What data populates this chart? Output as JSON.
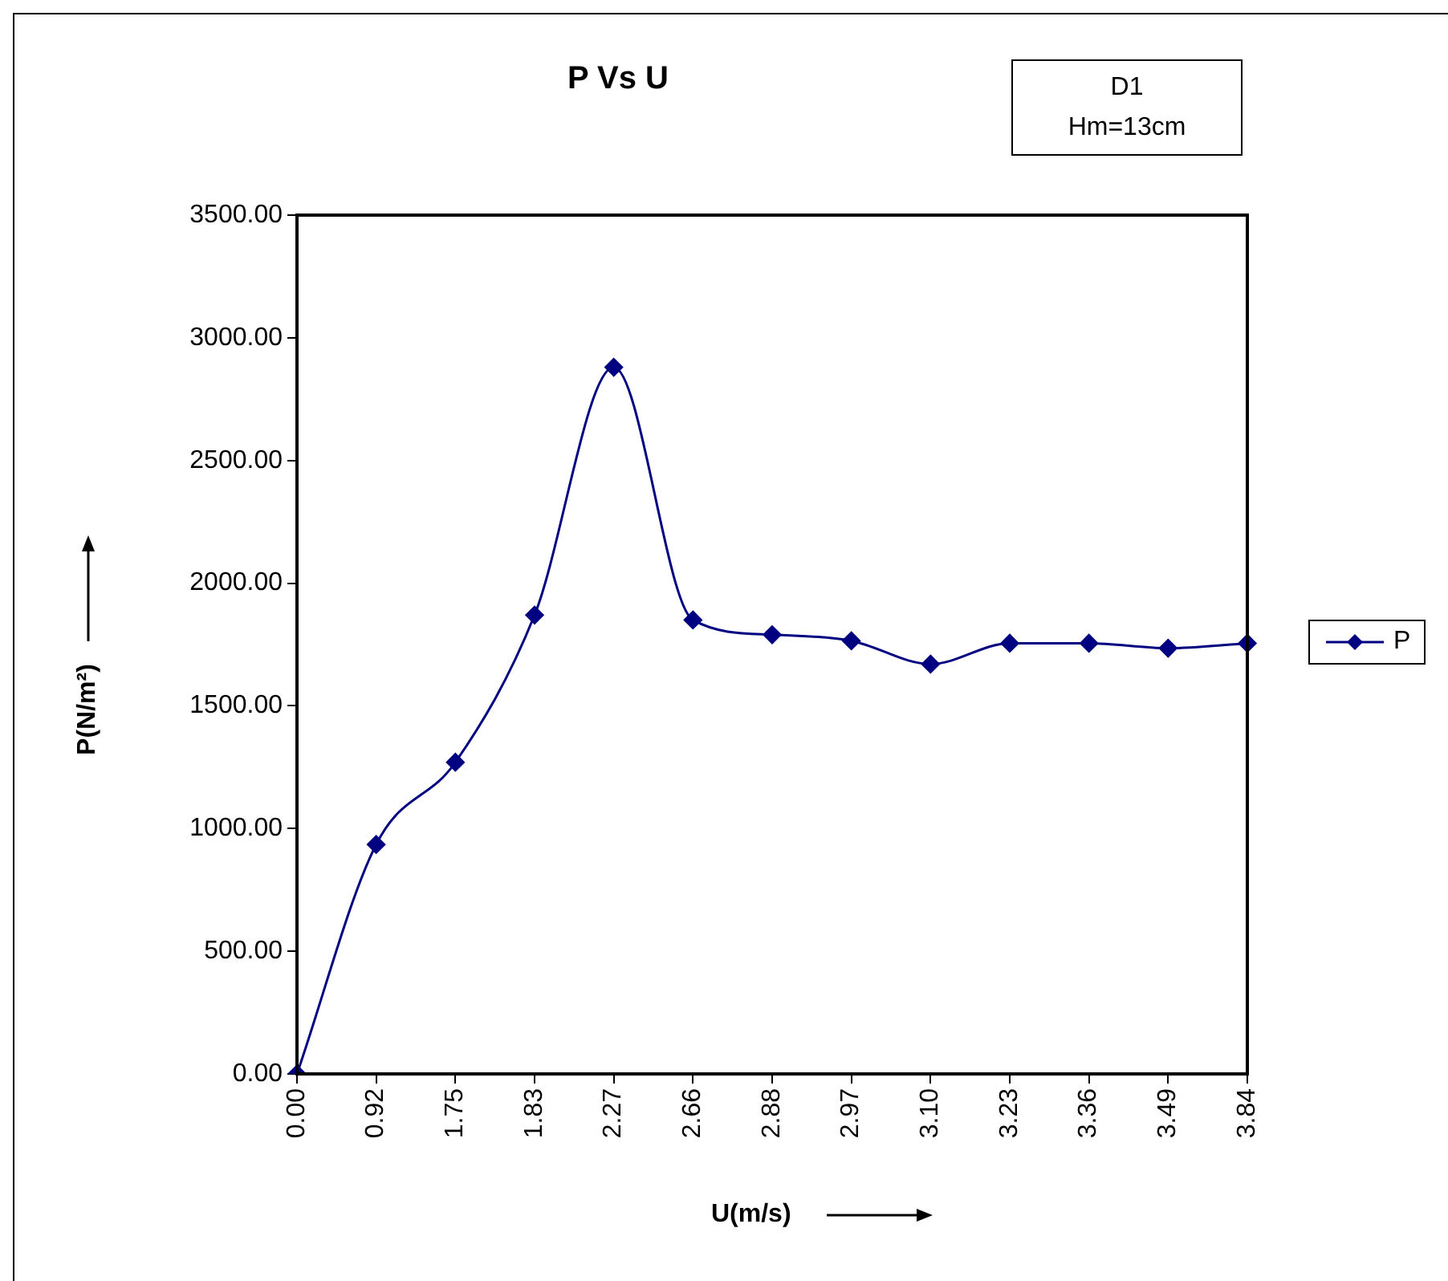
{
  "chart_data": {
    "type": "line",
    "title": "P Vs U",
    "xlabel": "U(m/s)",
    "ylabel": "P(N/m²)",
    "annotations": [
      "D1",
      "Hm=13cm"
    ],
    "categories": [
      "0.00",
      "0.92",
      "1.75",
      "1.83",
      "2.27",
      "2.66",
      "2.88",
      "2.97",
      "3.10",
      "3.23",
      "3.36",
      "3.49",
      "3.84"
    ],
    "series": [
      {
        "name": "P",
        "color": "#000080",
        "values": [
          0,
          935,
          1270,
          1870,
          2880,
          1850,
          1790,
          1765,
          1670,
          1755,
          1755,
          1735,
          1755
        ]
      }
    ],
    "ylim": [
      0,
      3500
    ],
    "yticks": [
      {
        "value": 0,
        "label": "0.00"
      },
      {
        "value": 500,
        "label": "500.00"
      },
      {
        "value": 1000,
        "label": "1000.00"
      },
      {
        "value": 1500,
        "label": "1500.00"
      },
      {
        "value": 2000,
        "label": "2000.00"
      },
      {
        "value": 2500,
        "label": "2500.00"
      },
      {
        "value": 3000,
        "label": "3000.00"
      },
      {
        "value": 3500,
        "label": "3500.00"
      }
    ],
    "grid": false,
    "legend": "right",
    "marker": "diamond",
    "line_style": "solid"
  }
}
